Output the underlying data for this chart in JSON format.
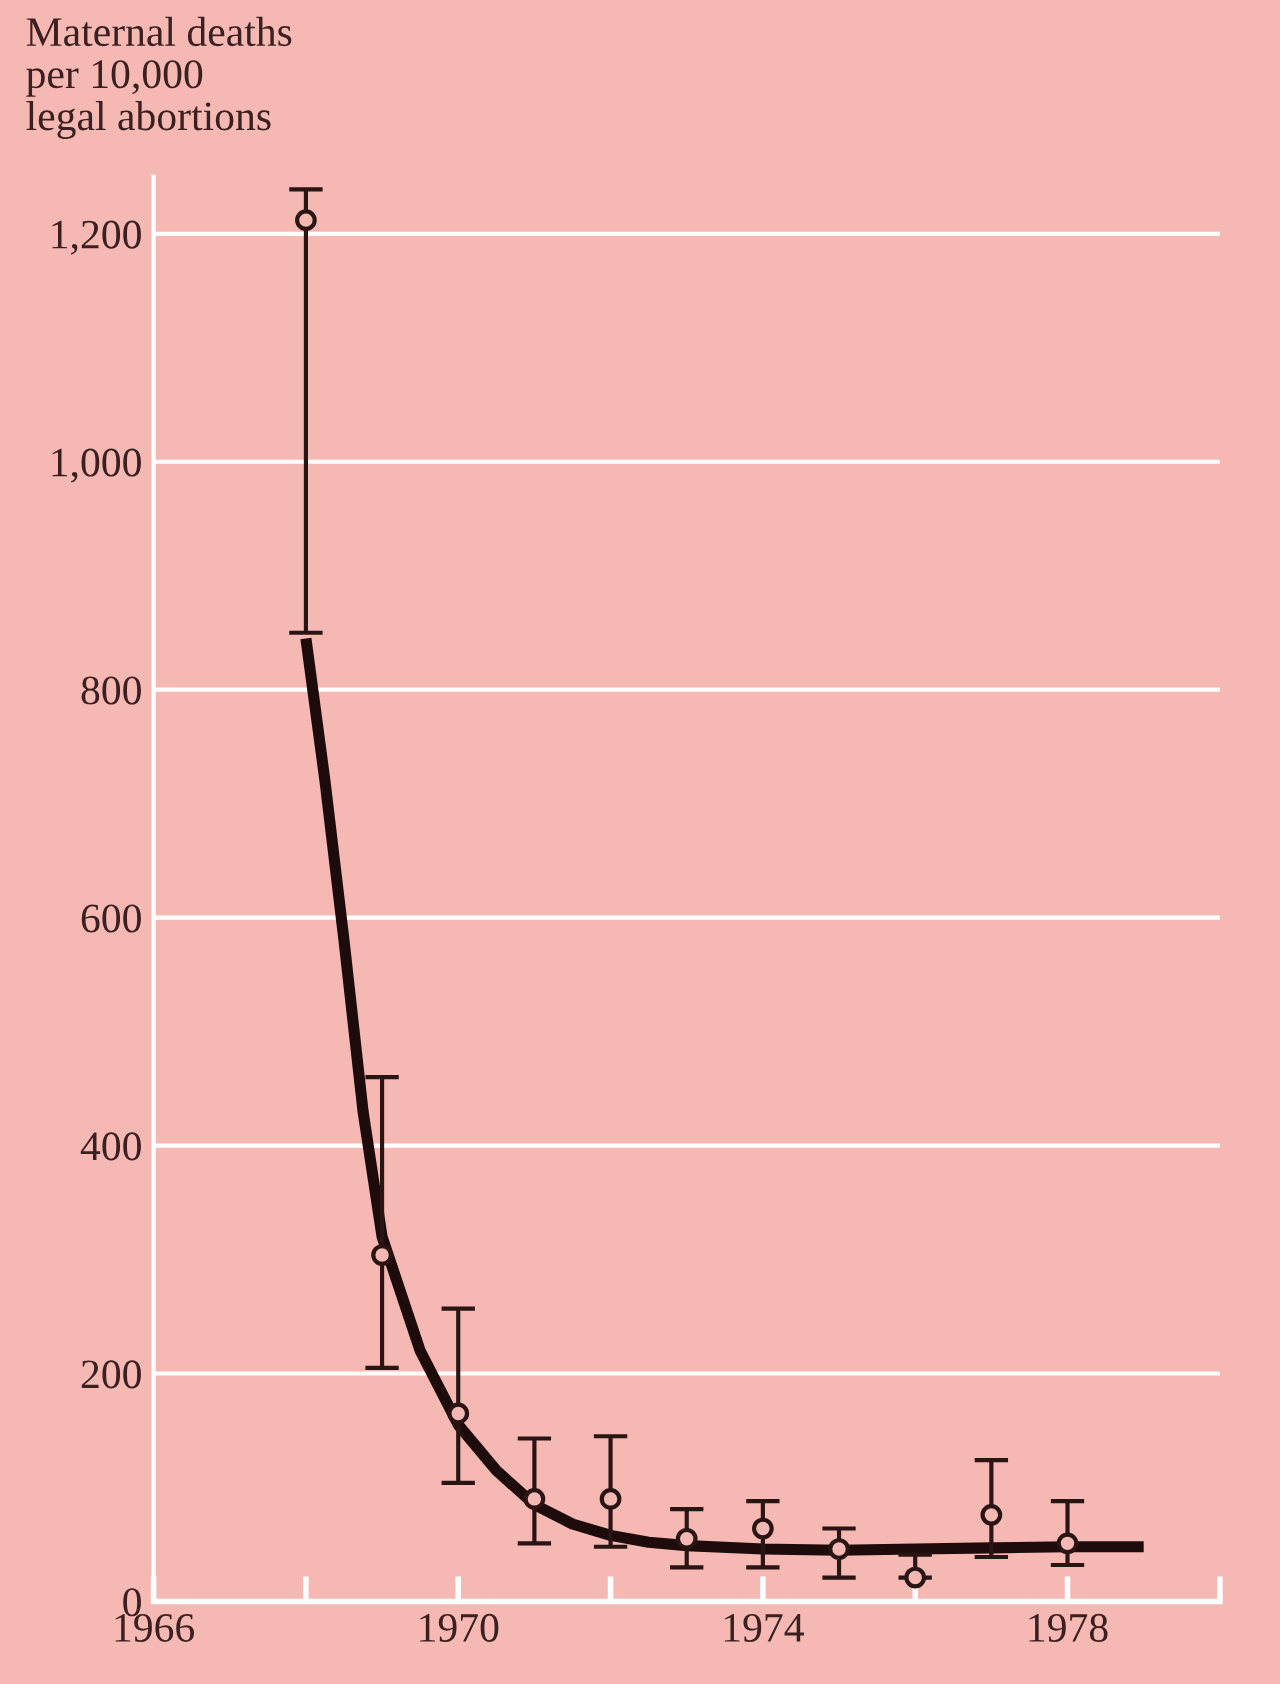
{
  "chart_data": {
    "type": "line",
    "ylabel": "Maternal deaths\nper 10,000\nlegal abortions",
    "xlim": [
      1966,
      1980
    ],
    "xticks": [
      1966,
      {
        "value": 1968,
        "label": null
      },
      1970,
      {
        "value": 1972,
        "label": null
      },
      1974,
      {
        "value": 1976,
        "label": null
      },
      1978,
      {
        "value": 1980,
        "label": null
      }
    ],
    "ylim": [
      0,
      1250
    ],
    "yticks": [
      0,
      200,
      400,
      600,
      800,
      {
        "value": 1000,
        "label": "1,000"
      },
      {
        "value": 1200,
        "label": "1,200"
      }
    ],
    "grid": "y",
    "series": [
      {
        "color": "#1e0c0c",
        "x": [
          1968,
          1968.25,
          1968.5,
          1968.75,
          1969,
          1969.5,
          1970,
          1970.5,
          1971,
          1971.5,
          1972,
          1972.5,
          1973,
          1974,
          1975,
          1976,
          1977,
          1978,
          1979
        ],
        "values": [
          845,
          720,
          580,
          430,
          320,
          220,
          155,
          115,
          85,
          68,
          58,
          52,
          49,
          46,
          45,
          46,
          47,
          48,
          48
        ]
      },
      {
        "type": "scatter",
        "marker": "circle",
        "color": "#2a1414",
        "x": [
          1968,
          1969,
          1970,
          1971,
          1972,
          1973,
          1974,
          1975,
          1976,
          1977,
          1978
        ],
        "values": [
          1212,
          304,
          165,
          90,
          90,
          55,
          64,
          46,
          21,
          76,
          51
        ],
        "errors": [
          [
            850,
            1239
          ],
          [
            205,
            460
          ],
          [
            104,
            257
          ],
          [
            51,
            143
          ],
          [
            48,
            145
          ],
          [
            30,
            81
          ],
          [
            30,
            88
          ],
          [
            21,
            64
          ],
          [
            21,
            41
          ],
          [
            39,
            124
          ],
          [
            32,
            88
          ]
        ]
      }
    ]
  }
}
